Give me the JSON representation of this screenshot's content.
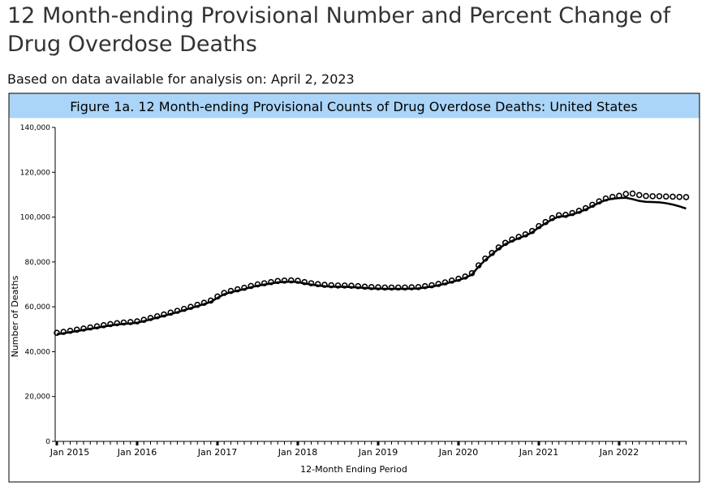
{
  "header": {
    "title": "12 Month-ending Provisional Number and Percent Change of Drug Overdose Deaths",
    "subtitle": "Based on data available for analysis on: April 2, 2023"
  },
  "chart_data": {
    "type": "line",
    "title": "Figure 1a. 12 Month-ending Provisional Counts of Drug Overdose Deaths: United States",
    "x_label": "12-Month Ending Period",
    "y_label": "Number of Deaths",
    "x": [
      "2015-01",
      "2015-02",
      "2015-03",
      "2015-04",
      "2015-05",
      "2015-06",
      "2015-07",
      "2015-08",
      "2015-09",
      "2015-10",
      "2015-11",
      "2015-12",
      "2016-01",
      "2016-02",
      "2016-03",
      "2016-04",
      "2016-05",
      "2016-06",
      "2016-07",
      "2016-08",
      "2016-09",
      "2016-10",
      "2016-11",
      "2016-12",
      "2017-01",
      "2017-02",
      "2017-03",
      "2017-04",
      "2017-05",
      "2017-06",
      "2017-07",
      "2017-08",
      "2017-09",
      "2017-10",
      "2017-11",
      "2017-12",
      "2018-01",
      "2018-02",
      "2018-03",
      "2018-04",
      "2018-05",
      "2018-06",
      "2018-07",
      "2018-08",
      "2018-09",
      "2018-10",
      "2018-11",
      "2018-12",
      "2019-01",
      "2019-02",
      "2019-03",
      "2019-04",
      "2019-05",
      "2019-06",
      "2019-07",
      "2019-08",
      "2019-09",
      "2019-10",
      "2019-11",
      "2019-12",
      "2020-01",
      "2020-02",
      "2020-03",
      "2020-04",
      "2020-05",
      "2020-06",
      "2020-07",
      "2020-08",
      "2020-09",
      "2020-10",
      "2020-11",
      "2020-12",
      "2021-01",
      "2021-02",
      "2021-03",
      "2021-04",
      "2021-05",
      "2021-06",
      "2021-07",
      "2021-08",
      "2021-09",
      "2021-10",
      "2021-11",
      "2021-12",
      "2022-01",
      "2022-02",
      "2022-03",
      "2022-04",
      "2022-05",
      "2022-06",
      "2022-07",
      "2022-08",
      "2022-09",
      "2022-10",
      "2022-11"
    ],
    "series": [
      {
        "style": "line",
        "color": "#000000",
        "values": [
          47800,
          48200,
          48700,
          49200,
          49700,
          50200,
          50700,
          51200,
          51700,
          52100,
          52400,
          52600,
          52900,
          53600,
          54400,
          55200,
          56000,
          56800,
          57600,
          58500,
          59400,
          60300,
          61200,
          62200,
          64000,
          65600,
          66500,
          67200,
          67900,
          68700,
          69400,
          69900,
          70400,
          70900,
          71100,
          71200,
          71000,
          70400,
          69900,
          69500,
          69200,
          69000,
          68900,
          68900,
          68800,
          68600,
          68400,
          68200,
          68100,
          68000,
          68000,
          68000,
          68000,
          68100,
          68200,
          68600,
          69000,
          69600,
          70300,
          71100,
          71900,
          72900,
          74400,
          77900,
          80900,
          83400,
          85900,
          87900,
          89400,
          90600,
          91700,
          93200,
          95400,
          97200,
          99000,
          100200,
          100400,
          101200,
          102200,
          103400,
          104900,
          106400,
          107600,
          108200,
          108500,
          108600,
          108000,
          107200,
          106800,
          106700,
          106600,
          106200,
          105600,
          104800,
          103800
        ]
      },
      {
        "style": "circle",
        "color": "#000000",
        "values": [
          48400,
          48800,
          49300,
          49800,
          50300,
          50800,
          51300,
          51800,
          52300,
          52700,
          53000,
          53200,
          53500,
          54200,
          55000,
          55800,
          56600,
          57400,
          58200,
          59100,
          60000,
          60900,
          61800,
          62800,
          64600,
          66200,
          67100,
          67800,
          68500,
          69300,
          70000,
          70500,
          71000,
          71500,
          71700,
          71800,
          71600,
          71000,
          70500,
          70100,
          69800,
          69600,
          69500,
          69500,
          69400,
          69200,
          69000,
          68800,
          68700,
          68600,
          68600,
          68600,
          68600,
          68700,
          68800,
          69200,
          69600,
          70200,
          70900,
          71700,
          72500,
          73500,
          75000,
          78500,
          81500,
          84000,
          86500,
          88500,
          90000,
          91200,
          92300,
          93800,
          96000,
          97800,
          99600,
          100800,
          101000,
          101800,
          102800,
          104000,
          105500,
          107000,
          108300,
          109000,
          109500,
          110300,
          110500,
          109800,
          109400,
          109300,
          109300,
          109200,
          109100,
          109000,
          108900
        ]
      }
    ],
    "ylim": [
      0,
      140000
    ],
    "yticks": [
      0,
      {
        "value": 20000,
        "label": "20,000"
      },
      {
        "value": 40000,
        "label": "40,000"
      },
      {
        "value": 60000,
        "label": "60,000"
      },
      {
        "value": 80000,
        "label": "80,000"
      },
      {
        "value": 100000,
        "label": "100,000"
      },
      {
        "value": 120000,
        "label": "120,000"
      },
      {
        "value": 140000,
        "label": "140,000"
      }
    ],
    "xticks": [
      {
        "value": "2015-01",
        "label": "Jan 2015"
      },
      {
        "value": "2016-01",
        "label": "Jan 2016"
      },
      {
        "value": "2017-01",
        "label": "Jan 2017"
      },
      {
        "value": "2018-01",
        "label": "Jan 2018"
      },
      {
        "value": "2019-01",
        "label": "Jan 2019"
      },
      {
        "value": "2020-01",
        "label": "Jan 2020"
      },
      {
        "value": "2021-01",
        "label": "Jan 2021"
      },
      {
        "value": "2022-01",
        "label": "Jan 2022"
      }
    ]
  }
}
